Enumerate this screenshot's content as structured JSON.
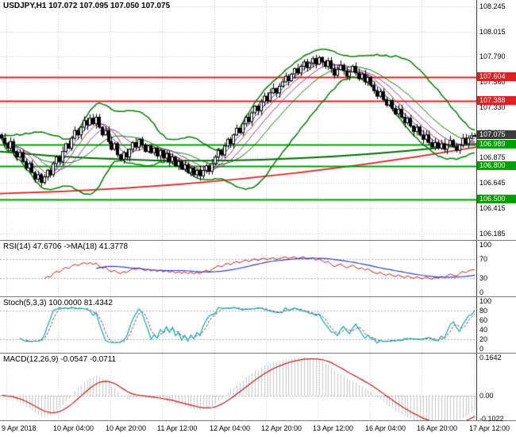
{
  "colors": {
    "background": "#ffffff",
    "grid": "#c9c9c9",
    "axis_text": "#000000",
    "candle_up": "#ffffff",
    "candle_down": "#000000",
    "candle_border": "#000000",
    "bollinger": "#008000",
    "ma_fast_blue": "#3050c8",
    "ma_fast_red": "#c03030",
    "ma_mid_purple": "#8040a0",
    "trend_ma_red": "#dd2020",
    "trend_ma_green": "#007000",
    "level_red": "#e02020",
    "level_green": "#00a000",
    "current_price_bg": "#3b3b3b",
    "rsi_line": "#c02020",
    "rsi_ma": "#3040c0",
    "stoch_k": "#00b0b8",
    "stoch_d": "#c02020",
    "macd_hist": "#c8c8c8",
    "macd_signal": "#c02020",
    "indicator_level": "#b0b0b0"
  },
  "chart_data": [
    {
      "type": "candlestick",
      "symbol": "USDJPY",
      "timeframe": "H1",
      "open": 107.072,
      "high": 107.095,
      "low": 107.05,
      "close": 107.075,
      "ohlc_label": "USDJPY,H1 107.072 107.095 107.050 107.075",
      "x_labels": [
        "9 Apr 2018",
        "10 Apr 04:00",
        "10 Apr 20:00",
        "11 Apr 12:00",
        "12 Apr 04:00",
        "12 Apr 20:00",
        "13 Apr 12:00",
        "16 Apr 04:00",
        "16 Apr 20:00",
        "17 Apr 12:00"
      ],
      "y_ticks": [
        "108.245",
        "108.015",
        "107.790",
        "107.560",
        "107.330",
        "107.100",
        "106.875",
        "106.645",
        "106.415",
        "106.185"
      ],
      "y_range": [
        106.13,
        108.3
      ],
      "first_open": 107.08,
      "closes": [
        107.05,
        107.0,
        106.96,
        107.02,
        106.93,
        106.88,
        106.92,
        106.84,
        106.78,
        106.82,
        106.74,
        106.68,
        106.72,
        106.65,
        106.7,
        106.76,
        106.72,
        106.82,
        106.88,
        106.84,
        106.93,
        107.0,
        106.96,
        107.05,
        107.12,
        107.08,
        107.15,
        107.21,
        107.17,
        107.23,
        107.18,
        107.24,
        107.15,
        107.08,
        107.12,
        107.02,
        106.95,
        107.0,
        106.9,
        106.86,
        106.92,
        106.88,
        106.95,
        107.01,
        106.97,
        107.04,
        106.99,
        106.93,
        106.98,
        106.92,
        106.96,
        106.89,
        106.94,
        106.87,
        106.91,
        106.84,
        106.88,
        106.8,
        106.84,
        106.77,
        106.81,
        106.74,
        106.78,
        106.72,
        106.76,
        106.71,
        106.76,
        106.8,
        106.75,
        106.82,
        106.88,
        106.94,
        106.9,
        106.98,
        107.04,
        107.0,
        107.08,
        107.14,
        107.1,
        107.18,
        107.24,
        107.2,
        107.28,
        107.34,
        107.3,
        107.38,
        107.43,
        107.39,
        107.46,
        107.5,
        107.46,
        107.52,
        107.56,
        107.61,
        107.57,
        107.63,
        107.68,
        107.64,
        107.7,
        107.74,
        107.69,
        107.73,
        107.77,
        107.72,
        107.78,
        107.74,
        107.7,
        107.75,
        107.68,
        107.62,
        107.67,
        107.71,
        107.66,
        107.61,
        107.65,
        107.7,
        107.64,
        107.59,
        107.63,
        107.56,
        107.6,
        107.53,
        107.48,
        107.43,
        107.47,
        107.4,
        107.35,
        107.39,
        107.32,
        107.27,
        107.31,
        107.24,
        107.19,
        107.23,
        107.16,
        107.11,
        107.15,
        107.08,
        107.04,
        107.08,
        107.01,
        106.97,
        107.01,
        106.96,
        107.0,
        106.95,
        106.99,
        107.03,
        106.97,
        106.94,
        106.99,
        107.05,
        107.0,
        107.05,
        107.072,
        107.075
      ],
      "levels": [
        {
          "price": 107.604,
          "label": "107.604",
          "color": "red",
          "role": "resistance"
        },
        {
          "price": 107.388,
          "label": "107.388",
          "color": "red",
          "role": "resistance"
        },
        {
          "price": 106.989,
          "label": "106.989",
          "color": "green",
          "role": "support"
        },
        {
          "price": 106.8,
          "label": "106.800",
          "color": "green",
          "role": "support"
        },
        {
          "price": 106.5,
          "label": "106.500",
          "color": "green",
          "role": "support"
        }
      ],
      "current_price": {
        "value": 107.075,
        "label": "107.075"
      },
      "indicators": {
        "bollinger_period": 20,
        "ma_periods": [
          5,
          8,
          13
        ],
        "trend_red": {
          "start": 106.55,
          "mid": 106.68,
          "end": 106.97
        },
        "trend_green": {
          "start": 106.93,
          "mid": 106.85,
          "end": 107.0
        }
      }
    },
    {
      "type": "line",
      "name": "RSI",
      "label": "RSI(14) 47.6706 ->MA(18) 41.3778",
      "period": 14,
      "ma_period": 18,
      "current": {
        "rsi": 47.6706,
        "ma": 41.3778
      },
      "y_ticks": [
        "100",
        "70",
        "30",
        "0"
      ],
      "level_lines": [
        70,
        30
      ],
      "y_range": [
        -8,
        108
      ]
    },
    {
      "type": "line",
      "name": "Stochastic",
      "label": "Stoch(5,3,3) 100.0000 81.4342",
      "params": [
        5,
        3,
        3
      ],
      "current": {
        "k": 100.0,
        "d": 81.4342
      },
      "y_ticks": [
        "100",
        "80",
        "60",
        "40",
        "20",
        "0"
      ],
      "level_lines": [
        80,
        20
      ],
      "y_range": [
        -8,
        108
      ]
    },
    {
      "type": "macd",
      "name": "MACD",
      "label": "MACD(12,26,9) -0.0547 -0.0711",
      "params": [
        12,
        26,
        9
      ],
      "current": {
        "macd": -0.0547,
        "signal": -0.0711
      },
      "y_ticks": [
        "0.1642",
        "0.00",
        "-0.1022"
      ],
      "y_range": [
        -0.108,
        0.182
      ]
    }
  ]
}
